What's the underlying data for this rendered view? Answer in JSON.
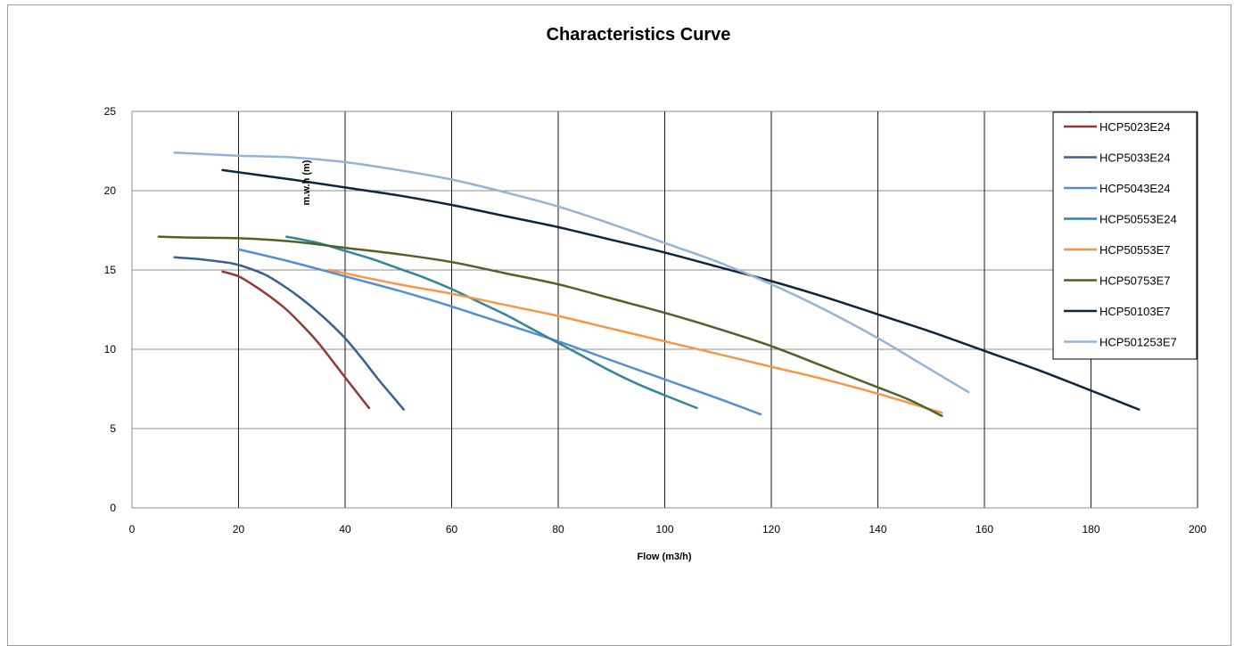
{
  "chart_data": {
    "type": "line",
    "title": "Characteristics Curve",
    "xlabel": "Flow (m3/h)",
    "ylabel": "m.w.h (m)",
    "xlim": [
      0,
      200
    ],
    "ylim": [
      0,
      25
    ],
    "xticks": [
      0,
      20,
      40,
      60,
      80,
      100,
      120,
      140,
      160,
      180,
      200
    ],
    "yticks": [
      0,
      5,
      10,
      15,
      20,
      25
    ],
    "grid": true,
    "legend_position": "top-right",
    "series": [
      {
        "name": "HCP5023E24",
        "color": "#953735",
        "x": [
          17,
          20,
          23,
          26,
          29,
          32,
          35,
          38,
          41,
          44.5
        ],
        "y": [
          14.9,
          14.6,
          14.0,
          13.3,
          12.5,
          11.5,
          10.4,
          9.1,
          7.8,
          6.3
        ]
      },
      {
        "name": "HCP5033E24",
        "color": "#366092",
        "x": [
          8,
          12,
          16,
          19,
          22,
          25,
          28,
          31,
          34,
          37,
          40,
          43,
          46,
          48.5,
          51
        ],
        "y": [
          15.8,
          15.7,
          15.55,
          15.4,
          15.1,
          14.7,
          14.1,
          13.4,
          12.6,
          11.7,
          10.7,
          9.5,
          8.2,
          7.2,
          6.2
        ]
      },
      {
        "name": "HCP5043E24",
        "color": "#558ED5",
        "x": [
          20,
          30,
          40,
          50,
          60,
          70,
          80,
          90,
          100,
          110,
          118
        ],
        "y": [
          16.3,
          15.5,
          14.6,
          13.7,
          12.7,
          11.6,
          10.5,
          9.3,
          8.1,
          6.9,
          5.9
        ]
      },
      {
        "name": "HCP50553E24",
        "color": "#31859C",
        "x": [
          29,
          35,
          40,
          45,
          50,
          55,
          60,
          65,
          70,
          75,
          80,
          85,
          90,
          95,
          100,
          106
        ],
        "y": [
          17.1,
          16.7,
          16.2,
          15.7,
          15.1,
          14.5,
          13.8,
          13.0,
          12.2,
          11.3,
          10.4,
          9.5,
          8.6,
          7.8,
          7.1,
          6.3
        ]
      },
      {
        "name": "HCP50553E7",
        "color": "#F79646",
        "x": [
          37,
          50,
          60,
          70,
          80,
          90,
          100,
          110,
          120,
          130,
          140,
          152
        ],
        "y": [
          15.0,
          14.1,
          13.5,
          12.8,
          12.1,
          11.3,
          10.5,
          9.7,
          8.9,
          8.1,
          7.2,
          6.0
        ]
      },
      {
        "name": "HCP50753E7",
        "color": "#4F6228",
        "x": [
          5,
          10,
          20,
          30,
          40,
          50,
          60,
          70,
          80,
          90,
          100,
          110,
          120,
          130,
          140,
          146,
          152
        ],
        "y": [
          17.1,
          17.05,
          17.0,
          16.8,
          16.4,
          16.0,
          15.5,
          14.8,
          14.1,
          13.2,
          12.3,
          11.3,
          10.2,
          8.9,
          7.6,
          6.8,
          5.8
        ]
      },
      {
        "name": "HCP50103E7",
        "color": "#0F243E",
        "x": [
          17,
          30,
          40,
          50,
          60,
          70,
          80,
          90,
          100,
          110,
          120,
          130,
          140,
          150,
          160,
          170,
          180,
          189
        ],
        "y": [
          21.3,
          20.7,
          20.2,
          19.7,
          19.1,
          18.4,
          17.7,
          16.9,
          16.1,
          15.2,
          14.3,
          13.3,
          12.2,
          11.1,
          9.9,
          8.7,
          7.4,
          6.2
        ]
      },
      {
        "name": "HCP501253E7",
        "color": "#95B3D7",
        "x": [
          8,
          20,
          30,
          40,
          50,
          60,
          70,
          80,
          90,
          100,
          110,
          120,
          130,
          140,
          150,
          157
        ],
        "y": [
          22.4,
          22.2,
          22.1,
          21.8,
          21.3,
          20.7,
          19.9,
          19.0,
          17.9,
          16.7,
          15.5,
          14.1,
          12.5,
          10.7,
          8.7,
          7.3
        ]
      }
    ]
  }
}
